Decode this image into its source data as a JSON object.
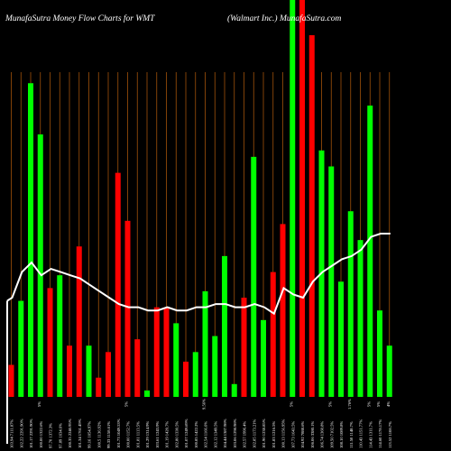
{
  "header": {
    "title_left": "MunafaSutra  Money Flow  Charts for WMT",
    "title_right": "(Walmart Inc.) MunafaSutra.com"
  },
  "chart_data": {
    "type": "bar",
    "grid": true,
    "colors": {
      "background": "#000000",
      "up": "#00ff00",
      "down": "#ff0000",
      "grid": "#a0520a",
      "line": "#ffffff"
    },
    "bars": [
      {
        "value": 10,
        "color": "red",
        "label": "103.94 7111.87%"
      },
      {
        "value": 30,
        "color": "green",
        "label": "102.22 2291.90%"
      },
      {
        "value": 98,
        "color": "green",
        "label": "101.17 2291.90%"
      },
      {
        "value": 82,
        "color": "green",
        "label": "100.00 1322.6%"
      },
      {
        "value": 34,
        "color": "red",
        "label": "97.70 1372.3%"
      },
      {
        "value": 38,
        "color": "green",
        "label": "97.89 1634.6%"
      },
      {
        "value": 16,
        "color": "red",
        "label": "100.35 2240.95%"
      },
      {
        "value": 47,
        "color": "red",
        "label": "101.34 1761.49%"
      },
      {
        "value": 16,
        "color": "green",
        "label": "99.16 1054.97%"
      },
      {
        "value": 6,
        "color": "red",
        "label": "100.5 1136.92%"
      },
      {
        "value": 14,
        "color": "red",
        "label": "99.33 1158.61%"
      },
      {
        "value": 70,
        "color": "red",
        "label": "101.73 1049.53%"
      },
      {
        "value": 55,
        "color": "red",
        "label": "100.00 1152.7%"
      },
      {
        "value": 18,
        "color": "red",
        "label": "101.81 1113.5%"
      },
      {
        "value": 2,
        "color": "green",
        "label": "101.29 1314.9%"
      },
      {
        "value": 28,
        "color": "red",
        "label": "103.61 1243.9%"
      },
      {
        "value": 28,
        "color": "red",
        "label": "101.19 1420.7%"
      },
      {
        "value": 23,
        "color": "green",
        "label": "102.80 1330.5%"
      },
      {
        "value": 11,
        "color": "red",
        "label": "101.07 1249.69%"
      },
      {
        "value": 14,
        "color": "green",
        "label": "100.85 1422.2%"
      },
      {
        "value": 33,
        "color": "green",
        "label": "102.54 1166.6%"
      },
      {
        "value": 19,
        "color": "green",
        "label": "102.12 1349.5%"
      },
      {
        "value": 44,
        "color": "green",
        "label": "104.44 1387.98%"
      },
      {
        "value": 4,
        "color": "green",
        "label": "103.06 1298.98%"
      },
      {
        "value": 31,
        "color": "red",
        "label": "102.57 1996.4%"
      },
      {
        "value": 75,
        "color": "green",
        "label": "102.85 1173.21%"
      },
      {
        "value": 24,
        "color": "green",
        "label": "101.90 1238.85%"
      },
      {
        "value": 39,
        "color": "red",
        "label": "101.83 1216.5%"
      },
      {
        "value": 54,
        "color": "red",
        "label": "100.13 1156.95%"
      },
      {
        "value": 124,
        "color": "green",
        "label": "107.73 1643.5%"
      },
      {
        "value": 124,
        "color": "red",
        "label": "104.92 7888.6%"
      },
      {
        "value": 113,
        "color": "red",
        "label": "106.06 3380.1%"
      },
      {
        "value": 77,
        "color": "green",
        "label": "106.74 1360.8%"
      },
      {
        "value": 72,
        "color": "green",
        "label": "109.50 7102.5%"
      },
      {
        "value": 36,
        "color": "green",
        "label": "108.10 1089.8%"
      },
      {
        "value": 58,
        "color": "green",
        "label": "111.50 1148.7%"
      },
      {
        "value": 49,
        "color": "green",
        "label": "110.43 1151.77%"
      },
      {
        "value": 91,
        "color": "green",
        "label": "114.43 1311.7%"
      },
      {
        "value": 27,
        "color": "green",
        "label": "114.60 1178.17%"
      },
      {
        "value": 16,
        "color": "green",
        "label": "113.52 1108.7%"
      }
    ],
    "line": [
      30,
      31,
      39,
      42,
      38,
      40,
      39,
      38,
      37,
      35,
      33,
      31,
      29,
      28,
      28,
      27,
      27,
      28,
      27,
      27,
      28,
      28,
      29,
      29,
      28,
      28,
      29,
      28,
      26,
      34,
      32,
      31,
      36,
      39,
      41,
      43,
      44,
      46,
      50,
      51,
      51
    ],
    "line_start": 8,
    "markers": [
      "5%",
      "5%",
      "9.56%",
      "5%",
      "5%",
      "1.76%",
      "5%",
      "5%",
      "4%"
    ]
  }
}
